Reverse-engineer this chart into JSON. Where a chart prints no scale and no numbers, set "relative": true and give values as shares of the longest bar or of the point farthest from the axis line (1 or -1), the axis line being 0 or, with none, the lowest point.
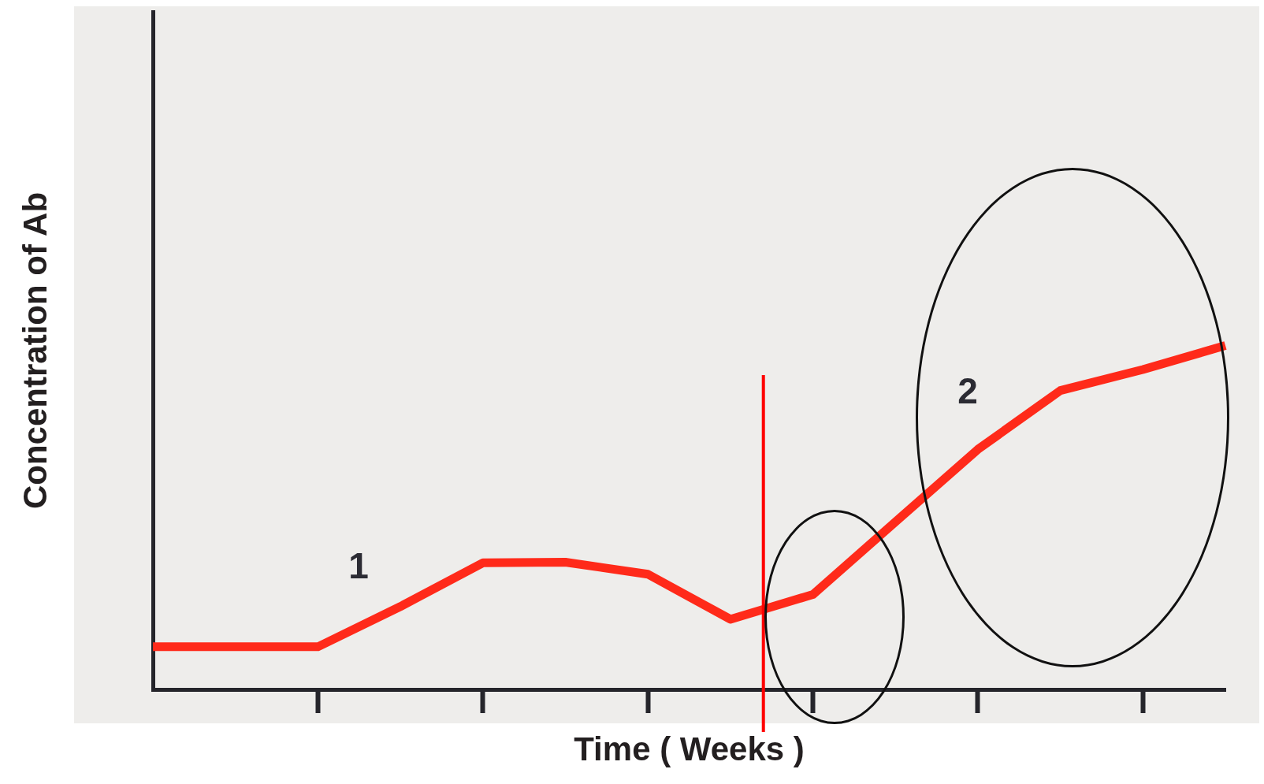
{
  "chart_data": {
    "type": "line",
    "relative": true,
    "xlabel": "Time ( Weeks )",
    "ylabel": "Concentration of Ab",
    "categories": [
      null,
      null,
      null,
      null,
      null,
      null,
      null,
      null,
      null,
      null,
      null,
      null,
      null,
      null
    ],
    "series": [
      {
        "color": "#ff2a1a",
        "values": [
          0.124,
          0.124,
          0.124,
          0.241,
          0.368,
          0.37,
          0.335,
          0.204,
          0.276,
          0.487,
          0.698,
          0.869,
          0.93,
          1
        ]
      }
    ],
    "annotations": [
      "1",
      "2"
    ],
    "marker": "none",
    "line_style": "solid",
    "grid": false,
    "legend": false
  }
}
